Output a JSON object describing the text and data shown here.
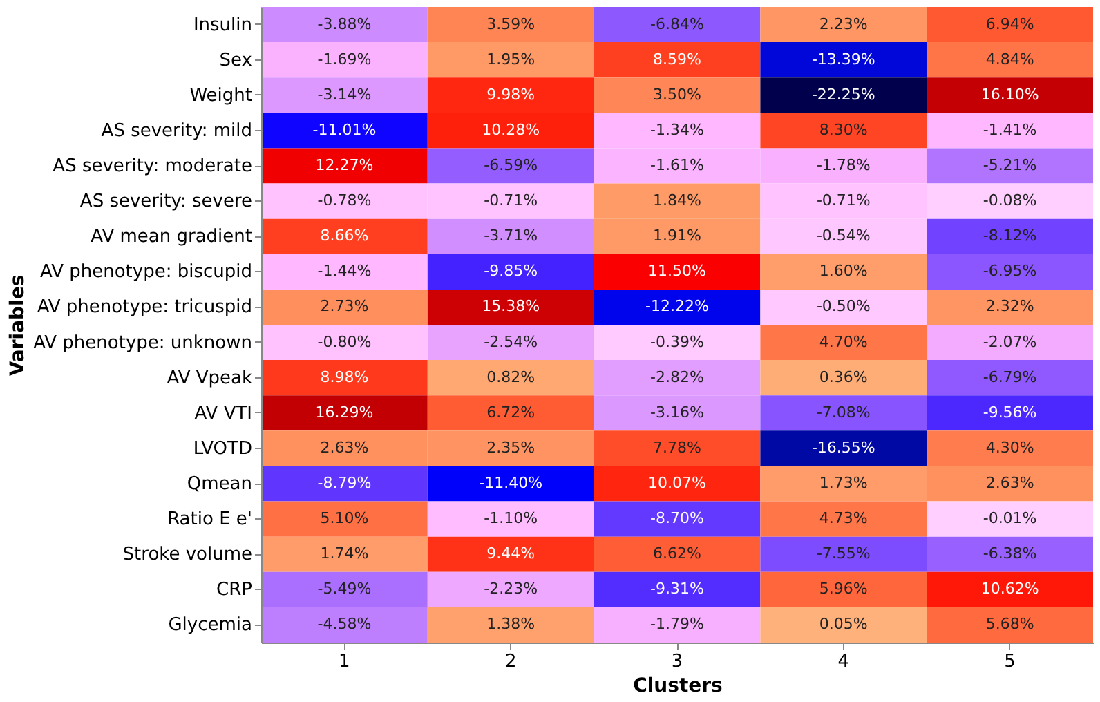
{
  "chart_data": {
    "type": "heatmap",
    "xlabel": "Clusters",
    "ylabel": "Variables",
    "categories": [
      "1",
      "2",
      "3",
      "4",
      "5"
    ],
    "y_categories": [
      "Insulin",
      "Sex",
      "Weight",
      "AS severity: mild",
      "AS severity: moderate",
      "AS severity: severe",
      "AV mean gradient",
      "AV phenotype: biscupid",
      "AV phenotype: tricuspid",
      "AV phenotype: unknown",
      "AV Vpeak",
      "AV VTI",
      "LVOTD",
      "Qmean",
      "Ratio E e'",
      "Stroke volume",
      "CRP",
      "Glycemia"
    ],
    "cells": [
      [
        -3.88,
        3.59,
        -6.84,
        2.23,
        6.94
      ],
      [
        -1.69,
        1.95,
        8.59,
        -13.39,
        4.84
      ],
      [
        -3.14,
        9.98,
        3.5,
        -22.25,
        16.1
      ],
      [
        -11.01,
        10.28,
        -1.34,
        8.3,
        -1.41
      ],
      [
        12.27,
        -6.59,
        -1.61,
        -1.78,
        -5.21
      ],
      [
        -0.78,
        -0.71,
        1.84,
        -0.71,
        -0.08
      ],
      [
        8.66,
        -3.71,
        1.91,
        -0.54,
        -8.12
      ],
      [
        -1.44,
        -9.85,
        11.5,
        1.6,
        -6.95
      ],
      [
        2.73,
        15.38,
        -12.22,
        -0.5,
        2.32
      ],
      [
        -0.8,
        -2.54,
        -0.39,
        4.7,
        -2.07
      ],
      [
        8.98,
        0.82,
        -2.82,
        0.36,
        -6.79
      ],
      [
        16.29,
        6.72,
        -3.16,
        -7.08,
        -9.56
      ],
      [
        2.63,
        2.35,
        7.78,
        -16.55,
        4.3
      ],
      [
        -8.79,
        -11.4,
        10.07,
        1.73,
        2.63
      ],
      [
        5.1,
        -1.1,
        -8.7,
        4.73,
        -0.01
      ],
      [
        1.74,
        9.44,
        6.62,
        -7.55,
        -6.38
      ],
      [
        -5.49,
        -2.23,
        -9.31,
        5.96,
        10.62
      ],
      [
        -4.58,
        1.38,
        -1.79,
        0.05,
        5.68
      ]
    ],
    "cell_labels": [
      [
        "-3.88%",
        "3.59%",
        "-6.84%",
        "2.23%",
        "6.94%"
      ],
      [
        "-1.69%",
        "1.95%",
        "8.59%",
        "-13.39%",
        "4.84%"
      ],
      [
        "-3.14%",
        "9.98%",
        "3.50%",
        "-22.25%",
        "16.10%"
      ],
      [
        "-11.01%",
        "10.28%",
        "-1.34%",
        "8.30%",
        "-1.41%"
      ],
      [
        "12.27%",
        "-6.59%",
        "-1.61%",
        "-1.78%",
        "-5.21%"
      ],
      [
        "-0.78%",
        "-0.71%",
        "1.84%",
        "-0.71%",
        "-0.08%"
      ],
      [
        "8.66%",
        "-3.71%",
        "1.91%",
        "-0.54%",
        "-8.12%"
      ],
      [
        "-1.44%",
        "-9.85%",
        "11.50%",
        "1.60%",
        "-6.95%"
      ],
      [
        "2.73%",
        "15.38%",
        "-12.22%",
        "-0.50%",
        "2.32%"
      ],
      [
        "-0.80%",
        "-2.54%",
        "-0.39%",
        "4.70%",
        "-2.07%"
      ],
      [
        "8.98%",
        "0.82%",
        "-2.82%",
        "0.36%",
        "-6.79%"
      ],
      [
        "16.29%",
        "6.72%",
        "-3.16%",
        "-7.08%",
        "-9.56%"
      ],
      [
        "2.63%",
        "2.35%",
        "7.78%",
        "-16.55%",
        "4.30%"
      ],
      [
        "-8.79%",
        "-11.40%",
        "10.07%",
        "1.73%",
        "2.63%"
      ],
      [
        "5.10%",
        "-1.10%",
        "-8.70%",
        "4.73%",
        "-0.01%"
      ],
      [
        "1.74%",
        "9.44%",
        "6.62%",
        "-7.55%",
        "-6.38%"
      ],
      [
        "-5.49%",
        "-2.23%",
        "-9.31%",
        "5.96%",
        "10.62%"
      ],
      [
        "-4.58%",
        "1.38%",
        "-1.79%",
        "0.05%",
        "5.68%"
      ]
    ]
  }
}
